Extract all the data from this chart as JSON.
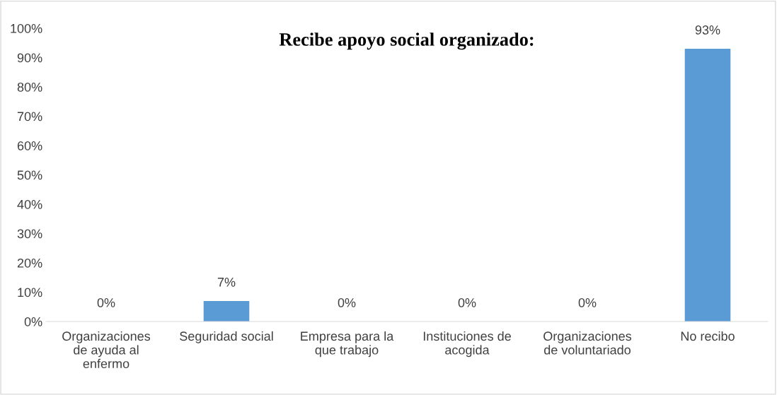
{
  "chart_data": {
    "type": "bar",
    "title": "Recibe apoyo social organizado:",
    "categories": [
      "Organizaciones de ayuda al enfermo",
      "Seguridad social",
      "Empresa para la que trabajo",
      "Instituciones de acogida",
      "Organizaciones de voluntariado",
      "No recibo"
    ],
    "values": [
      0,
      7,
      0,
      0,
      0,
      93
    ],
    "value_labels": [
      "0%",
      "7%",
      "0%",
      "0%",
      "0%",
      "93%"
    ],
    "color": "#5b9bd5",
    "ylim": [
      0,
      100
    ],
    "yticks": [
      {
        "value": 0,
        "label": "0%"
      },
      {
        "value": 10,
        "label": "10%"
      },
      {
        "value": 20,
        "label": "20%"
      },
      {
        "value": 30,
        "label": "30%"
      },
      {
        "value": 40,
        "label": "40%"
      },
      {
        "value": 50,
        "label": "50%"
      },
      {
        "value": 60,
        "label": "60%"
      },
      {
        "value": 70,
        "label": "70%"
      },
      {
        "value": 80,
        "label": "80%"
      },
      {
        "value": 90,
        "label": "90%"
      },
      {
        "value": 100,
        "label": "100%"
      }
    ],
    "grid": false,
    "legend": false
  }
}
